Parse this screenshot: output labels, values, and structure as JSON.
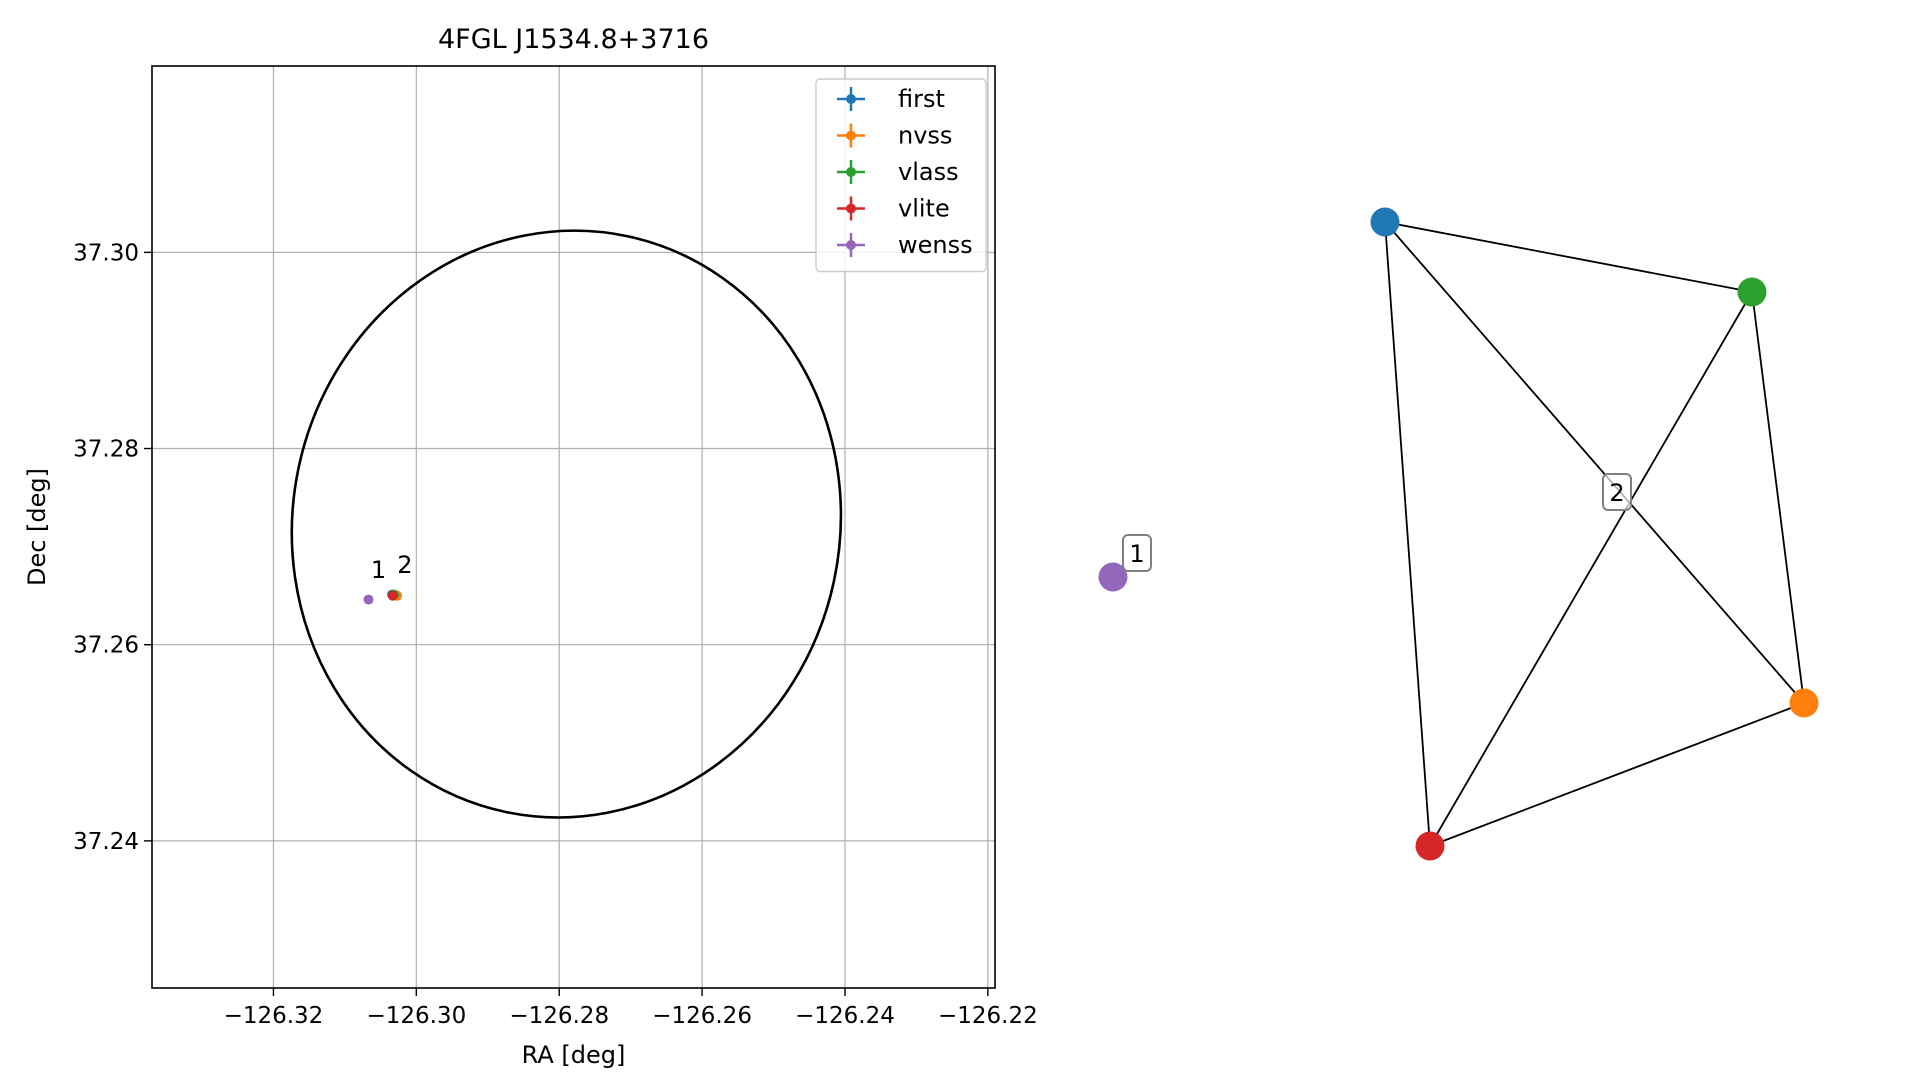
{
  "chart_data": [
    {
      "type": "scatter",
      "title": "4FGL J1534.8+3716",
      "xlabel": "RA [deg]",
      "ylabel": "Dec [deg]",
      "xlim": [
        -126.337,
        -126.219
      ],
      "ylim": [
        37.225,
        37.319
      ],
      "xticks": [
        -126.32,
        -126.3,
        -126.28,
        -126.26,
        -126.24,
        -126.22
      ],
      "xtick_labels": [
        "−126.32",
        "−126.30",
        "−126.28",
        "−126.26",
        "−126.24",
        "−126.22"
      ],
      "yticks": [
        37.24,
        37.26,
        37.28,
        37.3
      ],
      "ytick_labels": [
        "37.24",
        "37.26",
        "37.28",
        "37.30"
      ],
      "grid": true,
      "legend_position": "top-right",
      "ellipse": {
        "center_ra": -126.279,
        "center_dec": 37.2723,
        "semi_ra": 0.0383,
        "semi_dec": 0.03,
        "tilt_deg": 12,
        "color": "#000000"
      },
      "series": [
        {
          "name": "first",
          "color": "#1f77b4",
          "points": [
            {
              "ra": -126.3034,
              "dec": 37.2651
            }
          ]
        },
        {
          "name": "nvss",
          "color": "#ff7f0e",
          "points": [
            {
              "ra": -126.3027,
              "dec": 37.265
            }
          ]
        },
        {
          "name": "vlass",
          "color": "#2ca02c",
          "points": [
            {
              "ra": -126.3031,
              "dec": 37.2651
            }
          ]
        },
        {
          "name": "vlite",
          "color": "#d62728",
          "points": [
            {
              "ra": -126.3033,
              "dec": 37.265
            }
          ]
        },
        {
          "name": "wenss",
          "color": "#9467bd",
          "points": [
            {
              "ra": -126.3067,
              "dec": 37.2646
            }
          ]
        }
      ],
      "annotations": [
        {
          "text": "1",
          "ra": -126.3053,
          "dec": 37.266
        },
        {
          "text": "2",
          "ra": -126.3016,
          "dec": 37.2665
        }
      ]
    },
    {
      "type": "network",
      "nodes": [
        {
          "id": "first",
          "color": "#1f77b4"
        },
        {
          "id": "vlass",
          "color": "#2ca02c"
        },
        {
          "id": "nvss",
          "color": "#ff7f0e"
        },
        {
          "id": "vlite",
          "color": "#d62728"
        },
        {
          "id": "wenss",
          "color": "#9467bd"
        }
      ],
      "edges": [
        [
          "first",
          "vlass"
        ],
        [
          "first",
          "nvss"
        ],
        [
          "first",
          "vlite"
        ],
        [
          "vlass",
          "nvss"
        ],
        [
          "vlass",
          "vlite"
        ],
        [
          "nvss",
          "vlite"
        ]
      ],
      "labels": [
        {
          "text": "1",
          "group": [
            "wenss"
          ]
        },
        {
          "text": "2",
          "group": [
            "first",
            "vlass",
            "nvss",
            "vlite"
          ]
        }
      ]
    }
  ]
}
